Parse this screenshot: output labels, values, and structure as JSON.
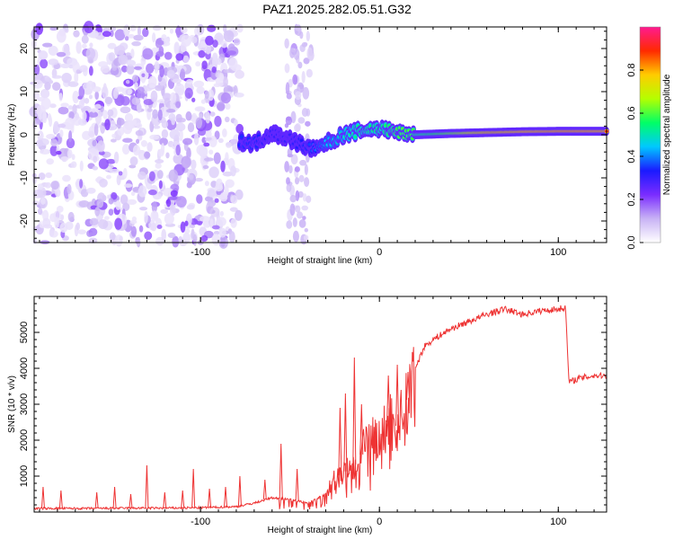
{
  "title": "PAZ1.2025.282.05.51.G32",
  "chart_data": [
    {
      "type": "heatmap",
      "title": "",
      "xlabel": "Height of straight line (km)",
      "ylabel": "Frequency (Hz)",
      "xlim": [
        -193,
        127
      ],
      "ylim": [
        -25,
        25
      ],
      "xticks": [
        -100,
        0,
        100
      ],
      "yticks": [
        -20,
        -10,
        0,
        10,
        20
      ],
      "colorbar": {
        "label": "Normalized spectral amplitude",
        "range": [
          0,
          1
        ],
        "ticks": [
          0.0,
          0.2,
          0.4,
          0.6,
          0.8
        ],
        "tick_labels": [
          "0.0",
          "0.2",
          "0.4",
          "0.6",
          "0.8"
        ],
        "colors": [
          "#ffffff",
          "#c8b2f5",
          "#7a2cff",
          "#1a1aff",
          "#00c8ff",
          "#00ff66",
          "#b4ff00",
          "#ffcc00",
          "#ff2a00",
          "#ff1a90"
        ]
      },
      "signal_track": {
        "x": [
          -78,
          -70,
          -60,
          -50,
          -40,
          -35,
          -30,
          -20,
          -10,
          0,
          10,
          20,
          40,
          60,
          80,
          100,
          127
        ],
        "frequency": [
          -1.5,
          -2.0,
          0.5,
          -1.0,
          -3.0,
          -3.5,
          -2.0,
          0.0,
          1.0,
          1.5,
          0.5,
          0.0,
          0.3,
          0.5,
          0.7,
          0.8,
          0.8
        ],
        "amplitude": [
          0.35,
          0.35,
          0.3,
          0.3,
          0.35,
          0.4,
          0.45,
          0.5,
          0.55,
          0.55,
          0.6,
          0.6,
          0.7,
          0.85,
          0.9,
          0.9,
          0.9
        ]
      },
      "noise_region_x": [
        -193,
        -78
      ]
    },
    {
      "type": "line",
      "title": "",
      "xlabel": "Height of straight line (km)",
      "ylabel": "SNR (10 * v/v)",
      "xlim": [
        -193,
        127
      ],
      "ylim": [
        0,
        6000
      ],
      "xticks": [
        -100,
        0,
        100
      ],
      "yticks": [
        1000,
        2000,
        3000,
        4000,
        5000
      ],
      "color": "#ee3333",
      "x": [
        -193,
        -180,
        -160,
        -140,
        -120,
        -100,
        -80,
        -70,
        -60,
        -50,
        -40,
        -30,
        -25,
        -20,
        -15,
        -10,
        -5,
        0,
        5,
        10,
        15,
        20,
        25,
        30,
        40,
        50,
        60,
        70,
        80,
        90,
        100,
        104,
        106,
        110,
        120,
        127
      ],
      "y": [
        100,
        100,
        100,
        110,
        110,
        120,
        150,
        250,
        400,
        350,
        250,
        500,
        900,
        1100,
        1250,
        1600,
        2100,
        1950,
        2500,
        2400,
        2900,
        4000,
        4600,
        4800,
        5100,
        5300,
        5500,
        5650,
        5500,
        5600,
        5650,
        5700,
        3600,
        3700,
        3800,
        3800
      ],
      "spikes": [
        {
          "x": -188,
          "y": 700
        },
        {
          "x": -178,
          "y": 600
        },
        {
          "x": -158,
          "y": 550
        },
        {
          "x": -148,
          "y": 700
        },
        {
          "x": -139,
          "y": 500
        },
        {
          "x": -130,
          "y": 1300
        },
        {
          "x": -120,
          "y": 550
        },
        {
          "x": -110,
          "y": 600
        },
        {
          "x": -104,
          "y": 1200
        },
        {
          "x": -95,
          "y": 650
        },
        {
          "x": -86,
          "y": 700
        },
        {
          "x": -78,
          "y": 1000
        },
        {
          "x": -64,
          "y": 900
        },
        {
          "x": -55,
          "y": 1900
        },
        {
          "x": -46,
          "y": 1200
        },
        {
          "x": -22,
          "y": 2900
        },
        {
          "x": -19,
          "y": 3300
        },
        {
          "x": -14,
          "y": 4300
        },
        {
          "x": -10,
          "y": 3000
        },
        {
          "x": 5,
          "y": 3800
        },
        {
          "x": 10,
          "y": 4100
        },
        {
          "x": 16,
          "y": 3900
        }
      ]
    }
  ]
}
